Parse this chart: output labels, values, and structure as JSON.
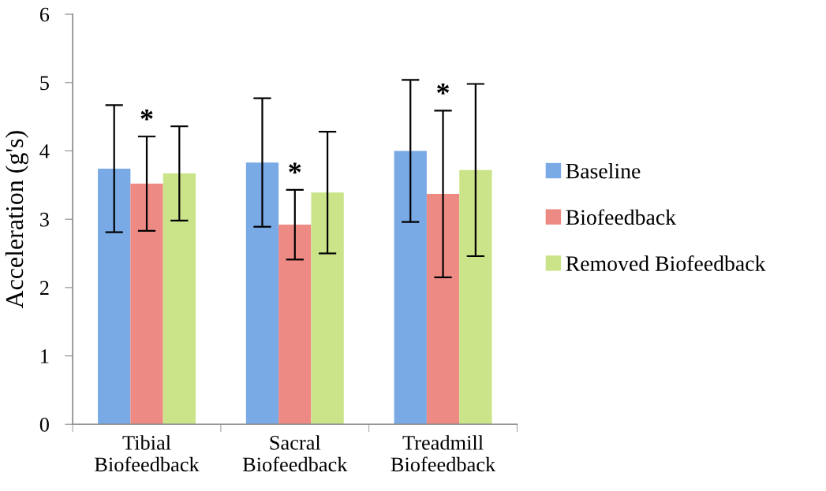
{
  "chart_data": {
    "type": "bar",
    "ylabel": "Acceleration (g's)",
    "categories": [
      "Tibial\nBiofeedback",
      "Sacral\nBiofeedback",
      "Treadmill\nBiofeedback"
    ],
    "series": [
      {
        "name": "Baseline",
        "color": "#7aaae6",
        "values": [
          3.74,
          3.83,
          4.0
        ],
        "errors": [
          0.93,
          0.94,
          1.04
        ]
      },
      {
        "name": "Biofeedback",
        "color": "#ee8a84",
        "values": [
          3.52,
          2.92,
          3.37
        ],
        "errors": [
          0.69,
          0.51,
          1.22
        ]
      },
      {
        "name": "Removed Biofeedback",
        "color": "#cbe48a",
        "values": [
          3.67,
          3.39,
          3.72
        ],
        "errors": [
          0.69,
          0.89,
          1.26
        ]
      }
    ],
    "annotations": [
      "*",
      "*",
      "*"
    ],
    "ylim": [
      0,
      6
    ],
    "yticks": [
      0,
      1,
      2,
      3,
      4,
      5,
      6
    ],
    "grid": false,
    "legend": "right"
  }
}
